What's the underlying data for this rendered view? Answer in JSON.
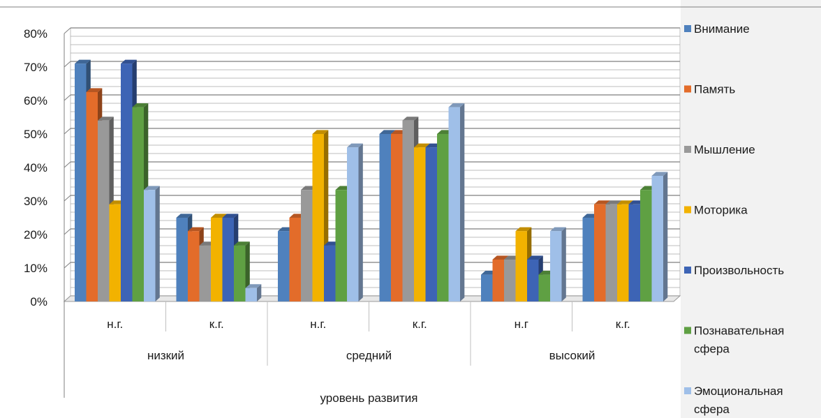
{
  "chart_data": {
    "type": "bar",
    "title": "",
    "ylim": [
      0,
      0.8
    ],
    "yticks": [
      0,
      0.1,
      0.2,
      0.3,
      0.4,
      0.5,
      0.6,
      0.7,
      0.8
    ],
    "ytick_labels": [
      "0%",
      "10%",
      "20%",
      "30%",
      "40%",
      "50%",
      "60%",
      "70%",
      "80%"
    ],
    "grid": true,
    "legend_position": "right",
    "axis_title": "уровень развития",
    "groups": [
      {
        "label": "низкий",
        "categories": [
          "н.г.",
          "к.г."
        ]
      },
      {
        "label": "средний",
        "categories": [
          "н.г.",
          "к.г."
        ]
      },
      {
        "label": "высокий",
        "categories": [
          "н.г",
          "к.г."
        ]
      }
    ],
    "series": [
      {
        "name": "Внимание",
        "color": "#4f81bd",
        "values": [
          0.71,
          0.25,
          0.21,
          0.5,
          0.08,
          0.25
        ]
      },
      {
        "name": "Память",
        "color": "#e36c2a",
        "values": [
          0.625,
          0.21,
          0.25,
          0.5,
          0.125,
          0.29
        ]
      },
      {
        "name": "Мышление",
        "color": "#999999",
        "values": [
          0.54,
          0.167,
          0.333,
          0.54,
          0.125,
          0.29
        ]
      },
      {
        "name": "Моторика",
        "color": "#f2b200",
        "values": [
          0.29,
          0.25,
          0.5,
          0.46,
          0.21,
          0.29
        ]
      },
      {
        "name": "Произвольность",
        "color": "#3d64b5",
        "values": [
          0.71,
          0.25,
          0.167,
          0.46,
          0.125,
          0.29
        ]
      },
      {
        "name": "Познавательная сфера",
        "color": "#5fa043",
        "values": [
          0.58,
          0.167,
          0.333,
          0.5,
          0.08,
          0.333
        ]
      },
      {
        "name": "Эмоциональная сфера",
        "color": "#9fbfe8",
        "values": [
          0.333,
          0.04,
          0.46,
          0.58,
          0.21,
          0.375
        ]
      }
    ]
  }
}
